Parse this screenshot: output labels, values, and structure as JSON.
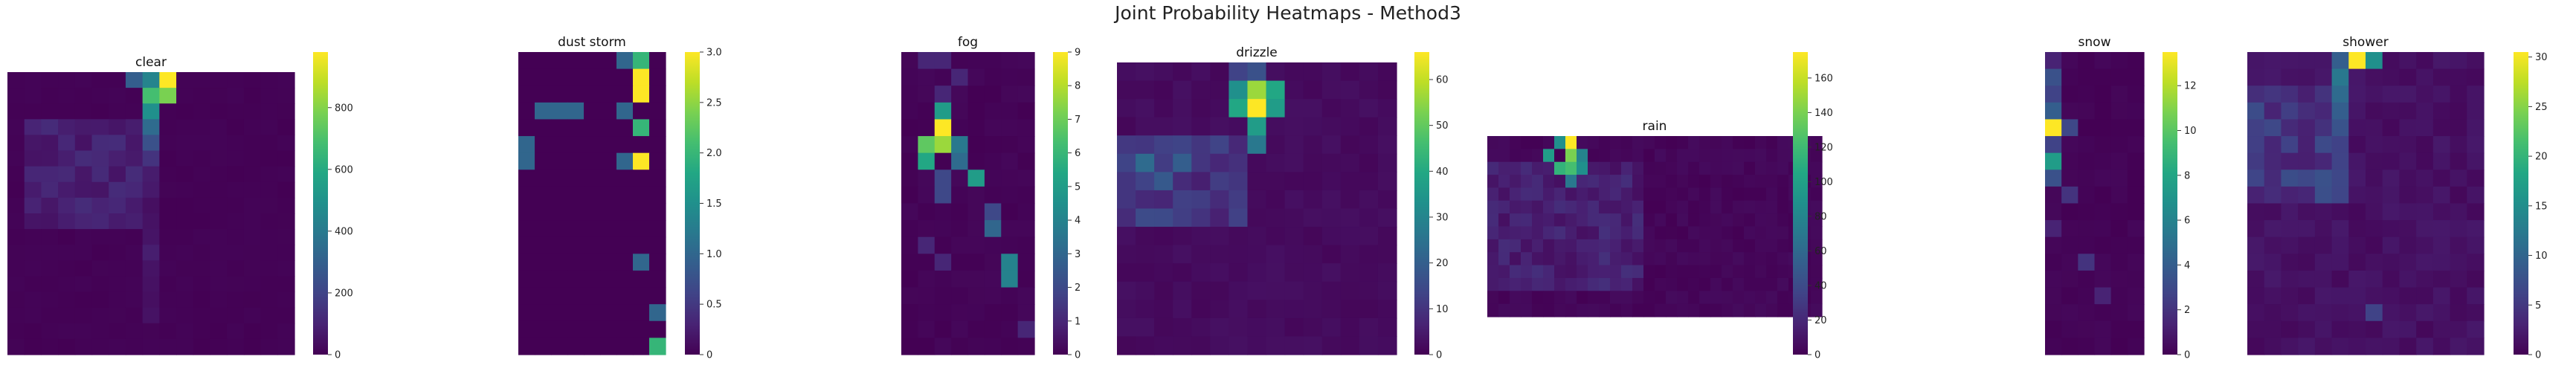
{
  "figure": {
    "title": "Joint Probability Heatmaps - Method3"
  },
  "chart_data": [
    {
      "type": "heatmap",
      "title": "clear",
      "colorbar_ticks": [
        0,
        200,
        400,
        600,
        800
      ],
      "vmax": 980,
      "rows": 18,
      "cols": 17
    },
    {
      "type": "heatmap",
      "title": "dust storm",
      "colorbar_ticks": [
        "0",
        "0.5",
        "1.0",
        "1.5",
        "2.0",
        "2.5",
        "3.0"
      ],
      "vmax": 3.0,
      "rows": 18,
      "cols": 9
    },
    {
      "type": "heatmap",
      "title": "fog",
      "colorbar_ticks": [
        0,
        1,
        2,
        3,
        4,
        5,
        6,
        7,
        8,
        9
      ],
      "vmax": 9,
      "rows": 18,
      "cols": 8
    },
    {
      "type": "heatmap",
      "title": "drizzle",
      "colorbar_ticks": [
        0,
        10,
        20,
        30,
        40,
        50,
        60
      ],
      "vmax": 66,
      "rows": 16,
      "cols": 15
    },
    {
      "type": "heatmap",
      "title": "rain",
      "colorbar_ticks": [
        0,
        20,
        40,
        60,
        80,
        100,
        120,
        140,
        160
      ],
      "vmax": 175,
      "rows": 14,
      "cols": 30
    },
    {
      "type": "heatmap",
      "title": "snow",
      "colorbar_ticks": [
        0,
        2,
        4,
        6,
        8,
        10,
        12
      ],
      "vmax": 13.5,
      "rows": 18,
      "cols": 6
    },
    {
      "type": "heatmap",
      "title": "shower",
      "colorbar_ticks": [
        0,
        5,
        10,
        15,
        20,
        25,
        30
      ],
      "vmax": 30.5,
      "rows": 18,
      "cols": 14
    }
  ]
}
